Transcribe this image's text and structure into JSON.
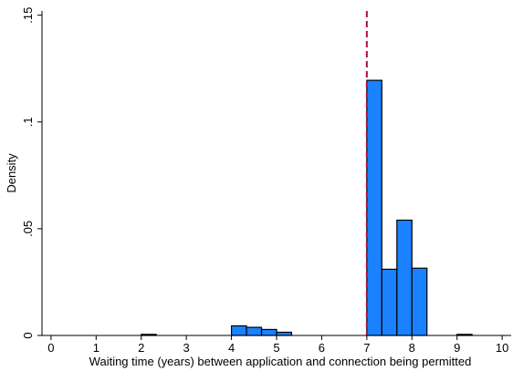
{
  "chart_data": {
    "type": "bar",
    "subtype": "histogram",
    "title": "",
    "xlabel": "Waiting time (years) between application and connection being permitted",
    "ylabel": "Density",
    "xlim": [
      -0.2,
      10.2
    ],
    "ylim": [
      0,
      0.152
    ],
    "x_ticks": [
      0,
      1,
      2,
      3,
      4,
      5,
      6,
      7,
      8,
      9,
      10
    ],
    "x_tick_labels": [
      "0",
      "1",
      "2",
      "3",
      "4",
      "5",
      "6",
      "7",
      "8",
      "9",
      "10"
    ],
    "y_ticks": [
      0,
      0.05,
      0.1,
      0.15
    ],
    "y_tick_labels": [
      "0",
      ".05",
      ".1",
      ".15"
    ],
    "bin_width": 0.333,
    "bins": [
      {
        "x0": 2.0,
        "x1": 2.333,
        "density": 0.0005
      },
      {
        "x0": 4.0,
        "x1": 4.333,
        "density": 0.0045
      },
      {
        "x0": 4.333,
        "x1": 4.667,
        "density": 0.0038
      },
      {
        "x0": 4.667,
        "x1": 5.0,
        "density": 0.0028
      },
      {
        "x0": 5.0,
        "x1": 5.333,
        "density": 0.0015
      },
      {
        "x0": 7.0,
        "x1": 7.333,
        "density": 0.1195
      },
      {
        "x0": 7.333,
        "x1": 7.667,
        "density": 0.031
      },
      {
        "x0": 7.667,
        "x1": 8.0,
        "density": 0.054
      },
      {
        "x0": 8.0,
        "x1": 8.333,
        "density": 0.0315
      },
      {
        "x0": 9.0,
        "x1": 9.333,
        "density": 0.0005
      }
    ],
    "reference_line": {
      "x": 7,
      "style": "dashed",
      "color": "#b0103a"
    },
    "bar_color": "#1a82ff",
    "grid": false,
    "legend": "none"
  }
}
